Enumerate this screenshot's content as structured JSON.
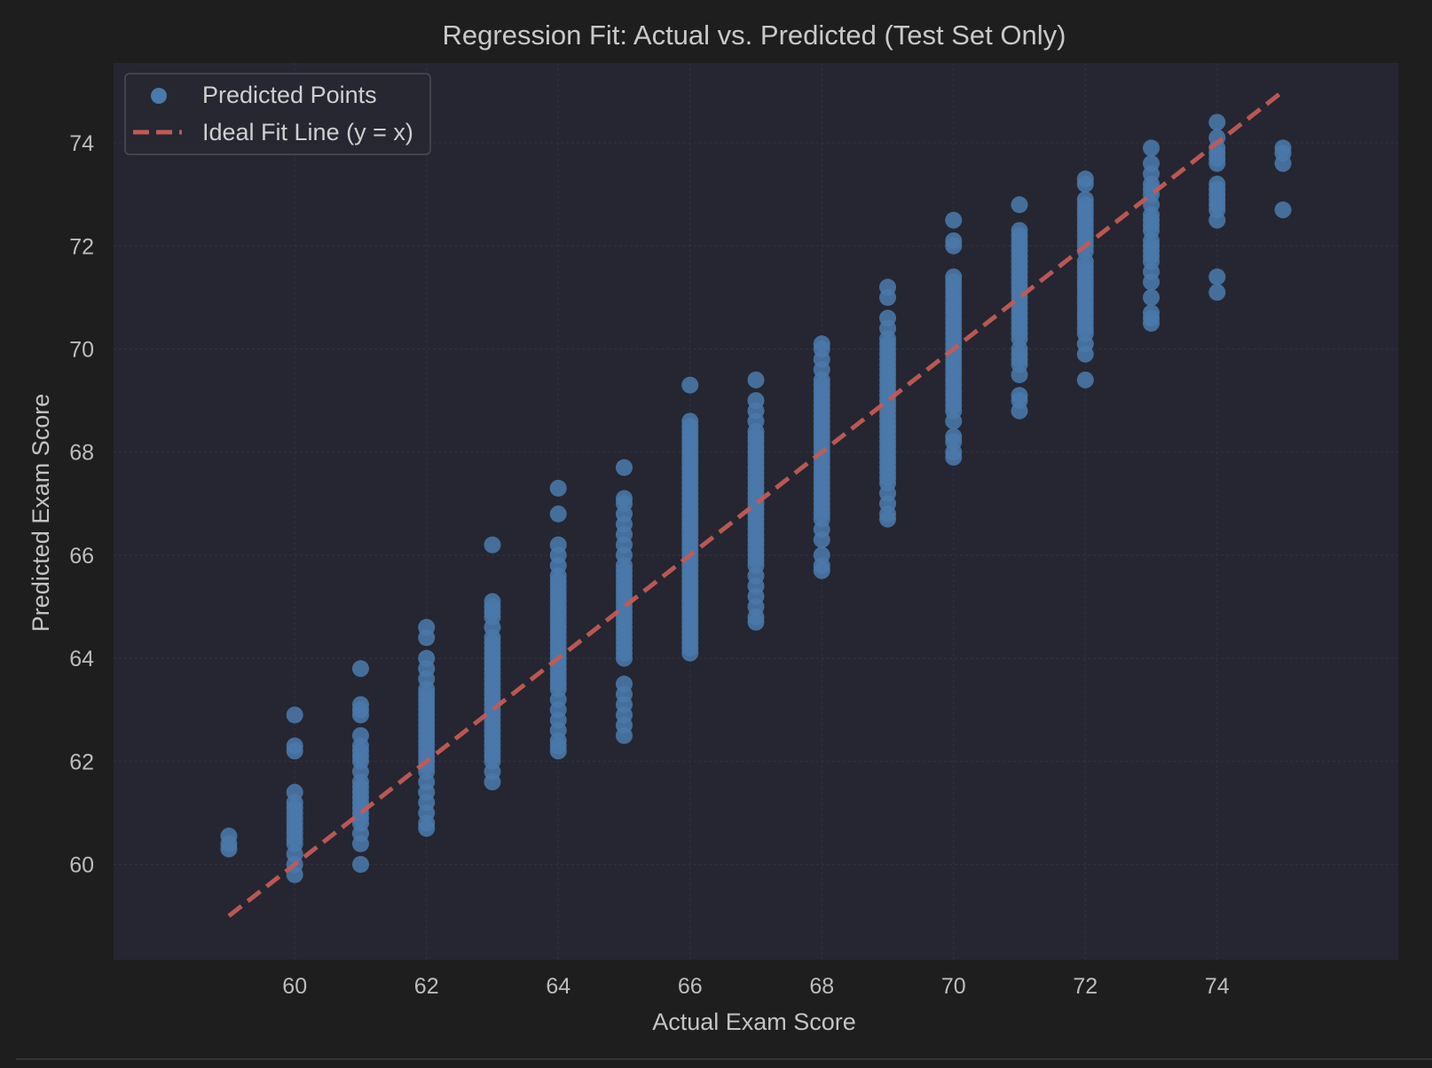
{
  "chart_data": {
    "type": "scatter",
    "title": "Regression Fit: Actual vs. Predicted (Test Set Only)",
    "xlabel": "Actual Exam Score",
    "ylabel": "Predicted Exam Score",
    "xlim": [
      57.25,
      76.75
    ],
    "ylim": [
      58.15,
      75.55
    ],
    "xticks": [
      60,
      62,
      64,
      66,
      68,
      70,
      72,
      74
    ],
    "yticks": [
      60,
      62,
      64,
      66,
      68,
      70,
      72,
      74
    ],
    "grid": true,
    "legend_position": "top-left",
    "colors": {
      "background": "#1e1e1f",
      "plot_area": "#252631",
      "grid": "#2f3140",
      "points": "#4a79aa",
      "ideal_line": "#c25a56",
      "text": "#bdbdbd"
    },
    "series": [
      {
        "name": "Predicted Points",
        "kind": "scatter",
        "columns": [
          {
            "x": 59,
            "ys": [
              60.3,
              60.4,
              60.55
            ]
          },
          {
            "x": 60,
            "ys": [
              59.8,
              60.0,
              60.2,
              60.4,
              60.5,
              60.6,
              60.7,
              60.8,
              60.9,
              61.0,
              61.1,
              61.2,
              61.4,
              62.2,
              62.3,
              62.9
            ]
          },
          {
            "x": 61,
            "ys": [
              60.0,
              60.4,
              60.6,
              60.8,
              60.9,
              61.0,
              61.1,
              61.2,
              61.3,
              61.4,
              61.5,
              61.6,
              61.8,
              62.0,
              62.1,
              62.2,
              62.3,
              62.5,
              62.9,
              63.0,
              63.1,
              63.8
            ]
          },
          {
            "x": 62,
            "ys": [
              60.7,
              60.8,
              61.0,
              61.2,
              61.4,
              61.6,
              61.8,
              61.9,
              62.0,
              62.1,
              62.2,
              62.3,
              62.4,
              62.5,
              62.6,
              62.7,
              62.8,
              62.9,
              63.0,
              63.1,
              63.2,
              63.3,
              63.4,
              63.6,
              63.8,
              64.0,
              64.4,
              64.6
            ]
          },
          {
            "x": 63,
            "ys": [
              61.6,
              61.8,
              62.0,
              62.1,
              62.2,
              62.3,
              62.4,
              62.5,
              62.6,
              62.7,
              62.8,
              62.9,
              63.0,
              63.1,
              63.2,
              63.3,
              63.4,
              63.5,
              63.6,
              63.7,
              63.8,
              63.9,
              64.0,
              64.1,
              64.2,
              64.3,
              64.4,
              64.6,
              64.8,
              64.9,
              65.0,
              65.1,
              66.2
            ]
          },
          {
            "x": 64,
            "ys": [
              62.2,
              62.3,
              62.4,
              62.6,
              62.8,
              63.0,
              63.2,
              63.4,
              63.5,
              63.6,
              63.7,
              63.8,
              63.9,
              64.0,
              64.1,
              64.2,
              64.3,
              64.4,
              64.5,
              64.6,
              64.7,
              64.8,
              64.9,
              65.0,
              65.1,
              65.2,
              65.3,
              65.4,
              65.5,
              65.6,
              65.8,
              66.0,
              66.2,
              66.8,
              67.3
            ]
          },
          {
            "x": 65,
            "ys": [
              62.5,
              62.7,
              62.9,
              63.1,
              63.3,
              63.5,
              64.0,
              64.1,
              64.2,
              64.3,
              64.4,
              64.5,
              64.6,
              64.7,
              64.8,
              64.9,
              65.0,
              65.1,
              65.2,
              65.3,
              65.4,
              65.5,
              65.6,
              65.7,
              65.8,
              66.0,
              66.2,
              66.4,
              66.6,
              66.8,
              67.0,
              67.1,
              67.7
            ]
          },
          {
            "x": 66,
            "ys": [
              64.1,
              64.2,
              64.3,
              64.4,
              64.5,
              64.6,
              64.7,
              64.8,
              64.9,
              65.0,
              65.1,
              65.2,
              65.3,
              65.4,
              65.5,
              65.6,
              65.7,
              65.8,
              65.9,
              66.0,
              66.1,
              66.2,
              66.3,
              66.4,
              66.5,
              66.6,
              66.7,
              66.8,
              66.9,
              67.0,
              67.1,
              67.2,
              67.3,
              67.4,
              67.5,
              67.6,
              67.7,
              67.8,
              67.9,
              68.0,
              68.1,
              68.2,
              68.3,
              68.4,
              68.5,
              68.6,
              69.3
            ]
          },
          {
            "x": 67,
            "ys": [
              64.7,
              64.8,
              65.0,
              65.2,
              65.4,
              65.6,
              65.8,
              65.9,
              66.0,
              66.1,
              66.2,
              66.3,
              66.4,
              66.5,
              66.6,
              66.7,
              66.8,
              66.9,
              67.0,
              67.1,
              67.2,
              67.3,
              67.4,
              67.5,
              67.6,
              67.7,
              67.8,
              67.9,
              68.0,
              68.1,
              68.2,
              68.3,
              68.4,
              68.6,
              68.8,
              69.0,
              69.4
            ]
          },
          {
            "x": 68,
            "ys": [
              65.7,
              65.8,
              66.0,
              66.3,
              66.5,
              66.7,
              66.8,
              66.9,
              67.0,
              67.1,
              67.2,
              67.3,
              67.4,
              67.5,
              67.6,
              67.7,
              67.8,
              67.9,
              68.0,
              68.1,
              68.2,
              68.3,
              68.4,
              68.5,
              68.6,
              68.7,
              68.8,
              68.9,
              69.0,
              69.1,
              69.2,
              69.3,
              69.4,
              69.6,
              69.8,
              70.0,
              70.1
            ]
          },
          {
            "x": 69,
            "ys": [
              66.7,
              66.8,
              67.0,
              67.2,
              67.4,
              67.5,
              67.6,
              67.7,
              67.8,
              67.9,
              68.0,
              68.1,
              68.2,
              68.3,
              68.4,
              68.5,
              68.6,
              68.7,
              68.8,
              68.9,
              69.0,
              69.1,
              69.2,
              69.3,
              69.4,
              69.5,
              69.6,
              69.7,
              69.8,
              69.9,
              70.0,
              70.1,
              70.2,
              70.4,
              70.6,
              71.0,
              71.2
            ]
          },
          {
            "x": 70,
            "ys": [
              67.9,
              68.0,
              68.2,
              68.3,
              68.6,
              68.8,
              68.9,
              69.0,
              69.1,
              69.2,
              69.3,
              69.4,
              69.5,
              69.6,
              69.7,
              69.8,
              69.9,
              70.0,
              70.1,
              70.2,
              70.3,
              70.4,
              70.5,
              70.6,
              70.7,
              70.8,
              70.9,
              71.0,
              71.1,
              71.2,
              71.3,
              71.4,
              72.0,
              72.1,
              72.5
            ]
          },
          {
            "x": 71,
            "ys": [
              68.8,
              69.0,
              69.1,
              69.5,
              69.7,
              69.8,
              69.9,
              70.0,
              70.2,
              70.3,
              70.4,
              70.5,
              70.6,
              70.7,
              70.8,
              70.9,
              71.0,
              71.1,
              71.2,
              71.3,
              71.4,
              71.5,
              71.6,
              71.7,
              71.8,
              71.9,
              72.0,
              72.1,
              72.2,
              72.3,
              72.8
            ]
          },
          {
            "x": 72,
            "ys": [
              69.4,
              69.9,
              70.1,
              70.3,
              70.4,
              70.5,
              70.6,
              70.7,
              70.8,
              70.9,
              71.0,
              71.1,
              71.2,
              71.3,
              71.4,
              71.5,
              71.6,
              71.7,
              71.9,
              72.0,
              72.1,
              72.2,
              72.3,
              72.4,
              72.5,
              72.6,
              72.7,
              72.8,
              72.9,
              73.2,
              73.3
            ]
          },
          {
            "x": 73,
            "ys": [
              70.5,
              70.6,
              70.7,
              71.0,
              71.3,
              71.5,
              71.7,
              71.8,
              71.9,
              72.0,
              72.1,
              72.3,
              72.4,
              72.5,
              72.6,
              72.8,
              73.0,
              73.1,
              73.2,
              73.4,
              73.6,
              73.9
            ]
          },
          {
            "x": 74,
            "ys": [
              71.1,
              71.4,
              72.5,
              72.7,
              72.8,
              72.9,
              73.0,
              73.1,
              73.2,
              73.6,
              73.7,
              73.8,
              73.9,
              74.1,
              74.4
            ]
          },
          {
            "x": 75,
            "ys": [
              72.7,
              73.6,
              73.8,
              73.9
            ]
          }
        ]
      },
      {
        "name": "Ideal Fit Line (y = x)",
        "kind": "line",
        "style": "dashed",
        "points": [
          [
            59,
            59
          ],
          [
            75,
            75
          ]
        ]
      }
    ]
  }
}
